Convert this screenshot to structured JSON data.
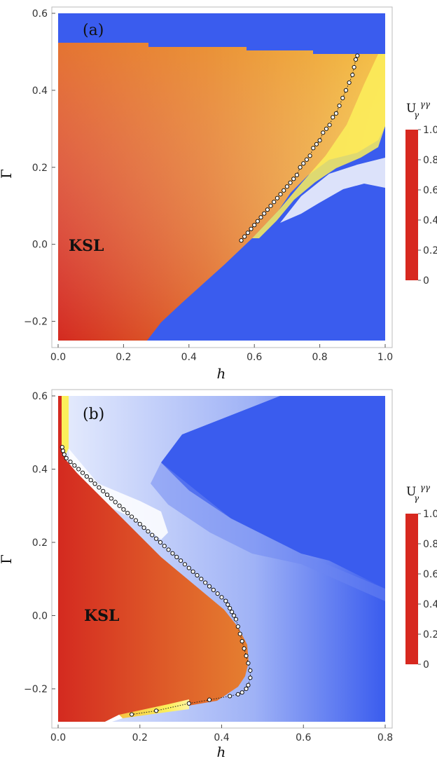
{
  "colorbar": {
    "title": "U",
    "title_sup": "γγ",
    "title_sub": "γ",
    "ticks": [
      "1.0",
      "0.8",
      "0.6",
      "0.4",
      "0.2",
      "0"
    ],
    "colors": [
      "#d7281f",
      "#e8742c",
      "#f2b543",
      "#fbf05c",
      "#ffffff",
      "#8da2f4",
      "#3a5cee"
    ]
  },
  "chart_data": [
    {
      "type": "heatmap",
      "panel": "(a)",
      "xlabel": "h",
      "ylabel": "Γ",
      "xlim": [
        0,
        1.0
      ],
      "ylim": [
        -0.25,
        0.6
      ],
      "xticks": [
        "0.0",
        "0.2",
        "0.4",
        "0.6",
        "0.8",
        "1.0"
      ],
      "yticks": [
        "−0.2",
        "0.0",
        "0.2",
        "0.4",
        "0.6"
      ],
      "region_label": "KSL",
      "colorbar_range": [
        0,
        1.0
      ],
      "boundary_points": [
        [
          0.56,
          0.01
        ],
        [
          0.57,
          0.02
        ],
        [
          0.58,
          0.03
        ],
        [
          0.59,
          0.04
        ],
        [
          0.6,
          0.05
        ],
        [
          0.61,
          0.06
        ],
        [
          0.62,
          0.07
        ],
        [
          0.63,
          0.08
        ],
        [
          0.64,
          0.09
        ],
        [
          0.65,
          0.1
        ],
        [
          0.66,
          0.11
        ],
        [
          0.67,
          0.12
        ],
        [
          0.68,
          0.13
        ],
        [
          0.69,
          0.14
        ],
        [
          0.7,
          0.15
        ],
        [
          0.71,
          0.16
        ],
        [
          0.72,
          0.17
        ],
        [
          0.73,
          0.18
        ],
        [
          0.74,
          0.2
        ],
        [
          0.75,
          0.21
        ],
        [
          0.76,
          0.22
        ],
        [
          0.77,
          0.23
        ],
        [
          0.78,
          0.25
        ],
        [
          0.79,
          0.26
        ],
        [
          0.8,
          0.27
        ],
        [
          0.81,
          0.29
        ],
        [
          0.82,
          0.3
        ],
        [
          0.83,
          0.31
        ],
        [
          0.84,
          0.33
        ],
        [
          0.85,
          0.34
        ],
        [
          0.86,
          0.36
        ],
        [
          0.87,
          0.38
        ],
        [
          0.88,
          0.4
        ],
        [
          0.89,
          0.42
        ],
        [
          0.9,
          0.44
        ],
        [
          0.905,
          0.46
        ],
        [
          0.91,
          0.48
        ],
        [
          0.915,
          0.49
        ]
      ]
    },
    {
      "type": "heatmap",
      "panel": "(b)",
      "xlabel": "h",
      "ylabel": "Γ",
      "xlim": [
        0,
        0.8
      ],
      "ylim": [
        -0.29,
        0.6
      ],
      "xticks": [
        "0.0",
        "0.2",
        "0.4",
        "0.6",
        "0.8"
      ],
      "yticks": [
        "−0.2",
        "0.0",
        "0.2",
        "0.4",
        "0.6"
      ],
      "region_label": "KSL",
      "colorbar_range": [
        0,
        1.0
      ],
      "boundary_points": [
        [
          0.01,
          0.46
        ],
        [
          0.012,
          0.45
        ],
        [
          0.015,
          0.44
        ],
        [
          0.02,
          0.43
        ],
        [
          0.03,
          0.42
        ],
        [
          0.04,
          0.41
        ],
        [
          0.05,
          0.4
        ],
        [
          0.06,
          0.39
        ],
        [
          0.07,
          0.38
        ],
        [
          0.08,
          0.37
        ],
        [
          0.09,
          0.36
        ],
        [
          0.1,
          0.35
        ],
        [
          0.11,
          0.34
        ],
        [
          0.12,
          0.33
        ],
        [
          0.13,
          0.32
        ],
        [
          0.14,
          0.31
        ],
        [
          0.15,
          0.3
        ],
        [
          0.16,
          0.29
        ],
        [
          0.17,
          0.28
        ],
        [
          0.18,
          0.27
        ],
        [
          0.19,
          0.26
        ],
        [
          0.2,
          0.25
        ],
        [
          0.21,
          0.24
        ],
        [
          0.22,
          0.23
        ],
        [
          0.23,
          0.22
        ],
        [
          0.24,
          0.21
        ],
        [
          0.25,
          0.2
        ],
        [
          0.26,
          0.19
        ],
        [
          0.27,
          0.18
        ],
        [
          0.28,
          0.17
        ],
        [
          0.29,
          0.16
        ],
        [
          0.3,
          0.15
        ],
        [
          0.31,
          0.14
        ],
        [
          0.32,
          0.13
        ],
        [
          0.33,
          0.12
        ],
        [
          0.34,
          0.11
        ],
        [
          0.35,
          0.1
        ],
        [
          0.36,
          0.09
        ],
        [
          0.37,
          0.08
        ],
        [
          0.38,
          0.07
        ],
        [
          0.39,
          0.06
        ],
        [
          0.4,
          0.05
        ],
        [
          0.41,
          0.04
        ],
        [
          0.415,
          0.03
        ],
        [
          0.42,
          0.02
        ],
        [
          0.425,
          0.01
        ],
        [
          0.43,
          0.0
        ],
        [
          0.435,
          -0.01
        ],
        [
          0.44,
          -0.03
        ],
        [
          0.445,
          -0.05
        ],
        [
          0.45,
          -0.07
        ],
        [
          0.455,
          -0.09
        ],
        [
          0.46,
          -0.11
        ],
        [
          0.465,
          -0.13
        ],
        [
          0.47,
          -0.15
        ],
        [
          0.47,
          -0.17
        ],
        [
          0.465,
          -0.19
        ],
        [
          0.46,
          -0.2
        ],
        [
          0.45,
          -0.21
        ],
        [
          0.44,
          -0.215
        ],
        [
          0.42,
          -0.22
        ],
        [
          0.37,
          -0.23
        ],
        [
          0.32,
          -0.24
        ],
        [
          0.24,
          -0.26
        ],
        [
          0.18,
          -0.27
        ]
      ]
    }
  ]
}
